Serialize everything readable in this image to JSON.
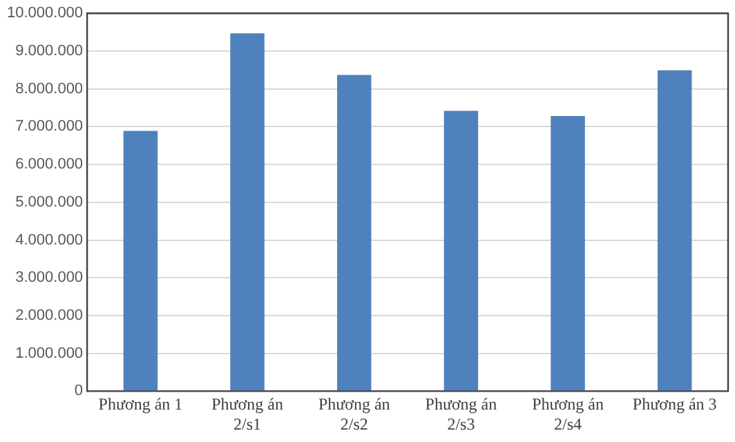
{
  "chart_data": {
    "type": "bar",
    "categories": [
      "Phương án 1",
      "Phương án 2/s1",
      "Phương án 2/s2",
      "Phương án 2/s3",
      "Phương án 2/s4",
      "Phương án 3"
    ],
    "values": [
      6890000,
      9470000,
      8370000,
      7420000,
      7280000,
      8490000
    ],
    "color": "#4f81bd",
    "ylim": [
      0,
      10000000
    ],
    "yticks": [
      {
        "value": 0,
        "label": "0"
      },
      {
        "value": 1000000,
        "label": "1.000.000"
      },
      {
        "value": 2000000,
        "label": "2.000.000"
      },
      {
        "value": 3000000,
        "label": "3.000.000"
      },
      {
        "value": 4000000,
        "label": "4.000.000"
      },
      {
        "value": 5000000,
        "label": "5.000.000"
      },
      {
        "value": 6000000,
        "label": "6.000.000"
      },
      {
        "value": 7000000,
        "label": "7.000.000"
      },
      {
        "value": 8000000,
        "label": "8.000.000"
      },
      {
        "value": 9000000,
        "label": "9.000.000"
      },
      {
        "value": 10000000,
        "label": "10.000.000"
      }
    ],
    "grid": "y",
    "legend": false
  }
}
